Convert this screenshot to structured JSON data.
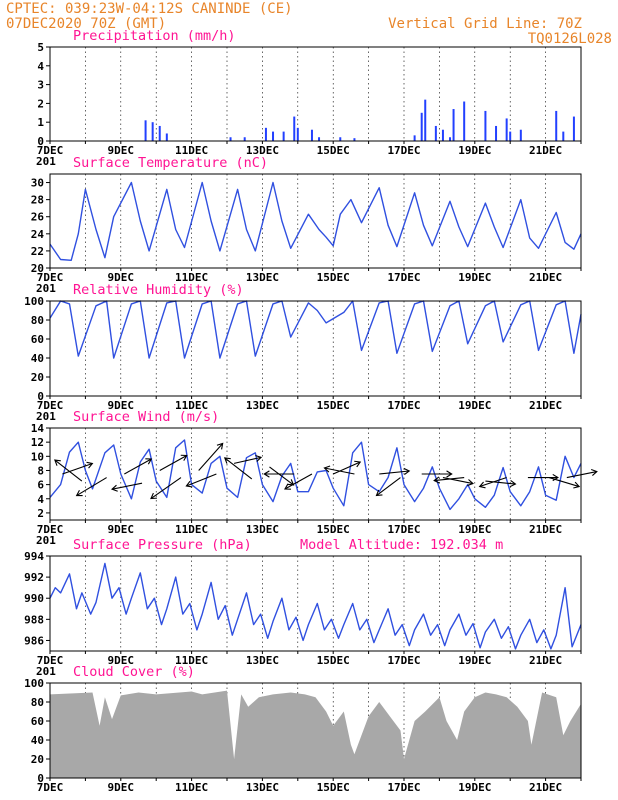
{
  "header": {
    "line1": "CPTEC:   039:23W-04:12S   CANINDE (CE)",
    "line2": "07DEC2020 70Z (GMT)",
    "right1": "Vertical Grid Line: 70Z",
    "right2": "TQ0126L028"
  },
  "x_ticks": [
    "7DEC",
    "9DEC",
    "11DEC",
    "13DEC",
    "15DEC",
    "17DEC",
    "19DEC",
    "21DEC"
  ],
  "x_cut_label": "201",
  "panels": [
    {
      "id": "precip",
      "title": "Precipitation (mm/h)",
      "yticks": [
        "5",
        "4",
        "3",
        "2",
        "1",
        "0"
      ]
    },
    {
      "id": "temp",
      "title": "Surface Temperature (nC)",
      "yticks": [
        "30",
        "28",
        "26",
        "24",
        "22",
        "20"
      ]
    },
    {
      "id": "rh",
      "title": "Relative Humidity (%)",
      "yticks": [
        "100",
        "80",
        "60",
        "40",
        "20",
        "0"
      ]
    },
    {
      "id": "wind",
      "title": "Surface Wind (m/s)",
      "yticks": [
        "14",
        "12",
        "10",
        "8",
        "6",
        "4",
        "2"
      ]
    },
    {
      "id": "press",
      "title": "Surface Pressure (hPa)",
      "extra": "Model Altitude: 192.034 m",
      "yticks": [
        "994",
        "992",
        "990",
        "988",
        "986"
      ]
    },
    {
      "id": "cloud",
      "title": "Cloud Cover (%)",
      "yticks": [
        "100",
        "80",
        "60",
        "40",
        "20",
        "0"
      ]
    }
  ],
  "chart_data": [
    {
      "type": "bar",
      "title": "Precipitation (mm/h)",
      "ylim": [
        0,
        5
      ],
      "x": [
        2.7,
        2.9,
        3.1,
        3.3,
        5.1,
        5.5,
        6.1,
        6.3,
        6.6,
        6.9,
        7.0,
        7.4,
        7.6,
        8.2,
        8.6,
        10.3,
        10.5,
        10.6,
        10.9,
        11.1,
        11.3,
        11.4,
        11.7,
        12.3,
        12.6,
        12.9,
        13.0,
        13.3,
        14.3,
        14.5,
        14.8
      ],
      "values": [
        1.1,
        1.0,
        0.8,
        0.4,
        0.2,
        0.2,
        0.7,
        0.5,
        0.5,
        1.3,
        0.7,
        0.6,
        0.2,
        0.2,
        0.15,
        0.3,
        1.5,
        2.2,
        0.8,
        0.6,
        0.2,
        1.7,
        2.1,
        1.6,
        0.8,
        1.2,
        0.5,
        0.6,
        1.6,
        0.5,
        1.3
      ],
      "xlim": [
        0,
        15
      ],
      "xticks": [
        "7DEC",
        "9DEC",
        "11DEC",
        "13DEC",
        "15DEC",
        "17DEC",
        "19DEC",
        "21DEC"
      ]
    },
    {
      "type": "line",
      "title": "Surface Temperature (nC)",
      "ylim": [
        20,
        31
      ],
      "series": [
        {
          "x": [
            0,
            0.3,
            0.6,
            0.8,
            1.0,
            1.3,
            1.55,
            1.8,
            2.3,
            2.55,
            2.8,
            3.3,
            3.55,
            3.8,
            4.3,
            4.55,
            4.8,
            5.3,
            5.55,
            5.8,
            6.3,
            6.55,
            6.8,
            7.3,
            7.6,
            7.8,
            8.0,
            8.2,
            8.5,
            8.8,
            9.3,
            9.55,
            9.8,
            10.3,
            10.55,
            10.8,
            11.3,
            11.55,
            11.8,
            12.3,
            12.55,
            12.8,
            13.3,
            13.55,
            13.8,
            14.3,
            14.55,
            14.8,
            15.0
          ],
          "values": [
            22.8,
            21.0,
            20.9,
            24.0,
            29.2,
            24.5,
            21.2,
            26.0,
            30.0,
            25.5,
            22.0,
            29.2,
            24.5,
            22.4,
            30.0,
            25.5,
            22.0,
            29.2,
            24.5,
            22.0,
            30.0,
            25.5,
            22.3,
            26.3,
            24.5,
            23.6,
            22.6,
            26.3,
            28.0,
            25.3,
            29.4,
            25.0,
            22.5,
            28.8,
            25.0,
            22.6,
            27.8,
            24.8,
            22.5,
            27.6,
            24.8,
            22.4,
            28.0,
            23.5,
            22.3,
            26.5,
            23.0,
            22.2,
            24.0
          ]
        }
      ],
      "xticks": [
        "7DEC",
        "9DEC",
        "11DEC",
        "13DEC",
        "15DEC",
        "17DEC",
        "19DEC",
        "21DEC"
      ]
    },
    {
      "type": "line",
      "title": "Relative Humidity (%)",
      "ylim": [
        0,
        100
      ],
      "series": [
        {
          "x": [
            0,
            0.3,
            0.55,
            0.8,
            1.3,
            1.6,
            1.8,
            2.3,
            2.55,
            2.8,
            3.3,
            3.55,
            3.8,
            4.3,
            4.55,
            4.8,
            5.3,
            5.55,
            5.8,
            6.3,
            6.55,
            6.8,
            7.3,
            7.55,
            7.8,
            8.3,
            8.55,
            8.8,
            9.3,
            9.55,
            9.8,
            10.3,
            10.55,
            10.8,
            11.3,
            11.55,
            11.8,
            12.3,
            12.55,
            12.8,
            13.3,
            13.55,
            13.8,
            14.3,
            14.55,
            14.8,
            15.0
          ],
          "values": [
            82,
            100,
            97,
            42,
            95,
            100,
            40,
            97,
            100,
            40,
            98,
            100,
            40,
            97,
            100,
            40,
            97,
            100,
            42,
            97,
            100,
            62,
            98,
            90,
            77,
            88,
            100,
            48,
            98,
            100,
            45,
            97,
            100,
            47,
            95,
            100,
            55,
            95,
            100,
            57,
            96,
            100,
            48,
            96,
            100,
            45,
            86
          ]
        }
      ],
      "xticks": [
        "7DEC",
        "9DEC",
        "11DEC",
        "13DEC",
        "15DEC",
        "17DEC",
        "19DEC",
        "21DEC"
      ]
    },
    {
      "type": "line",
      "title": "Surface Wind (m/s)",
      "ylim": [
        1,
        14
      ],
      "series": [
        {
          "x": [
            0,
            0.3,
            0.55,
            0.8,
            1.0,
            1.2,
            1.55,
            1.8,
            2.0,
            2.3,
            2.55,
            2.8,
            3.0,
            3.3,
            3.55,
            3.8,
            4.0,
            4.3,
            4.55,
            4.8,
            5.0,
            5.3,
            5.55,
            5.8,
            6.0,
            6.3,
            6.55,
            6.8,
            7.0,
            7.3,
            7.55,
            7.8,
            8.0,
            8.3,
            8.55,
            8.8,
            9.0,
            9.3,
            9.55,
            9.8,
            10.0,
            10.3,
            10.55,
            10.8,
            11.0,
            11.3,
            11.55,
            11.8,
            12.0,
            12.3,
            12.55,
            12.8,
            13.0,
            13.3,
            13.55,
            13.8,
            14.0,
            14.3,
            14.55,
            14.8,
            15.0
          ],
          "values": [
            4.2,
            6.0,
            10.6,
            12.0,
            8.0,
            5.4,
            10.5,
            11.6,
            7.5,
            4.0,
            9.2,
            11.0,
            6.5,
            4.2,
            11.2,
            12.3,
            6.0,
            4.8,
            9.0,
            10.0,
            5.5,
            4.2,
            9.8,
            10.5,
            6.0,
            3.6,
            7.2,
            9.0,
            5.0,
            5.0,
            7.8,
            8.0,
            5.5,
            3.0,
            10.5,
            12.0,
            6.0,
            5.0,
            7.0,
            11.2,
            6.0,
            3.6,
            5.5,
            8.5,
            5.5,
            2.5,
            4.0,
            6.0,
            4.0,
            2.8,
            4.5,
            8.4,
            5.0,
            3.0,
            5.0,
            8.5,
            4.5,
            3.8,
            10.0,
            7.0,
            9.0
          ]
        }
      ],
      "xticks": [
        "7DEC",
        "9DEC",
        "11DEC",
        "13DEC",
        "15DEC",
        "17DEC",
        "19DEC",
        "21DEC"
      ]
    },
    {
      "type": "line",
      "title": "Surface Pressure (hPa)",
      "ylim": [
        985,
        994
      ],
      "series": [
        {
          "x": [
            0,
            0.15,
            0.3,
            0.55,
            0.75,
            0.9,
            1.15,
            1.3,
            1.55,
            1.75,
            1.95,
            2.15,
            2.3,
            2.55,
            2.75,
            2.95,
            3.15,
            3.3,
            3.55,
            3.75,
            3.95,
            4.15,
            4.3,
            4.55,
            4.75,
            4.95,
            5.15,
            5.3,
            5.55,
            5.75,
            5.95,
            6.15,
            6.3,
            6.55,
            6.75,
            6.95,
            7.15,
            7.3,
            7.55,
            7.75,
            7.95,
            8.15,
            8.3,
            8.55,
            8.75,
            8.95,
            9.15,
            9.3,
            9.55,
            9.75,
            9.95,
            10.15,
            10.3,
            10.55,
            10.75,
            10.95,
            11.15,
            11.3,
            11.55,
            11.75,
            11.95,
            12.15,
            12.3,
            12.55,
            12.75,
            12.95,
            13.15,
            13.3,
            13.55,
            13.75,
            13.95,
            14.15,
            14.3,
            14.55,
            14.75,
            15.0
          ],
          "values": [
            990.0,
            991.0,
            990.5,
            992.3,
            989.0,
            990.5,
            988.5,
            989.6,
            993.3,
            990.0,
            991.0,
            988.5,
            990.0,
            992.4,
            989.0,
            990.0,
            987.5,
            989.0,
            992.0,
            988.5,
            989.5,
            987.0,
            988.5,
            991.5,
            988.0,
            989.3,
            986.5,
            988.0,
            990.5,
            987.5,
            988.5,
            986.2,
            987.8,
            990.0,
            987.0,
            988.2,
            986.0,
            987.5,
            989.5,
            987.0,
            988.0,
            986.2,
            987.5,
            989.5,
            987.0,
            988.0,
            985.8,
            987.0,
            989.0,
            986.5,
            987.5,
            985.5,
            987.0,
            988.5,
            986.5,
            987.5,
            985.5,
            987.0,
            988.5,
            986.5,
            987.6,
            985.3,
            986.8,
            988.0,
            986.2,
            987.3,
            985.2,
            986.5,
            988.0,
            985.8,
            987.0,
            985.2,
            986.5,
            991.0,
            985.4,
            987.5
          ]
        }
      ],
      "xticks": [
        "7DEC",
        "9DEC",
        "11DEC",
        "13DEC",
        "15DEC",
        "17DEC",
        "19DEC",
        "21DEC"
      ]
    },
    {
      "type": "area",
      "title": "Cloud Cover (%)",
      "ylim": [
        0,
        100
      ],
      "series": [
        {
          "x": [
            0,
            1.2,
            1.4,
            1.55,
            1.75,
            2.0,
            2.5,
            3.0,
            4.0,
            4.3,
            5.0,
            5.2,
            5.4,
            5.6,
            5.9,
            6.3,
            6.8,
            7.2,
            7.5,
            7.8,
            8.0,
            8.3,
            8.5,
            8.6,
            8.8,
            9.0,
            9.3,
            9.6,
            9.9,
            10.0,
            10.3,
            10.6,
            11.0,
            11.2,
            11.5,
            11.7,
            12.0,
            12.3,
            12.6,
            12.9,
            13.2,
            13.5,
            13.6,
            13.9,
            14.3,
            14.5,
            14.7,
            15.0
          ],
          "values": [
            88,
            90,
            55,
            85,
            62,
            87,
            90,
            88,
            91,
            88,
            92,
            20,
            88,
            75,
            85,
            88,
            90,
            88,
            85,
            70,
            55,
            70,
            35,
            25,
            45,
            65,
            80,
            65,
            50,
            20,
            60,
            70,
            85,
            60,
            40,
            70,
            85,
            90,
            88,
            85,
            75,
            60,
            35,
            90,
            85,
            45,
            60,
            78
          ]
        }
      ],
      "xticks": [
        "7DEC",
        "9DEC",
        "11DEC",
        "13DEC",
        "15DEC",
        "17DEC",
        "19DEC",
        "21DEC"
      ]
    }
  ],
  "wind_vectors": [
    {
      "day": 0.35,
      "y": 7.5,
      "dx": 1.0,
      "dy": 0.35
    },
    {
      "day": 0.9,
      "y": 6.5,
      "dx": -0.9,
      "dy": 0.7
    },
    {
      "day": 1.6,
      "y": 7.0,
      "dx": -1.0,
      "dy": -0.6
    },
    {
      "day": 2.1,
      "y": 7.5,
      "dx": 0.9,
      "dy": 0.5
    },
    {
      "day": 2.6,
      "y": 6.2,
      "dx": -1.0,
      "dy": -0.2
    },
    {
      "day": 3.1,
      "y": 8.0,
      "dx": 0.9,
      "dy": 0.5
    },
    {
      "day": 3.7,
      "y": 7.0,
      "dx": -1.0,
      "dy": -0.7
    },
    {
      "day": 4.2,
      "y": 8.0,
      "dx": 0.8,
      "dy": 0.9
    },
    {
      "day": 4.7,
      "y": 7.5,
      "dx": -1.0,
      "dy": -0.4
    },
    {
      "day": 5.2,
      "y": 9.0,
      "dx": 0.9,
      "dy": 0.2
    },
    {
      "day": 5.7,
      "y": 6.8,
      "dx": -0.9,
      "dy": 0.7
    },
    {
      "day": 6.2,
      "y": 8.5,
      "dx": 0.8,
      "dy": -0.6
    },
    {
      "day": 6.9,
      "y": 7.5,
      "dx": -1.0,
      "dy": 0.0
    },
    {
      "day": 7.4,
      "y": 7.5,
      "dx": -0.9,
      "dy": -0.5
    },
    {
      "day": 8.0,
      "y": 7.5,
      "dx": 0.9,
      "dy": 0.4
    },
    {
      "day": 8.6,
      "y": 7.5,
      "dx": -1.0,
      "dy": 0.2
    },
    {
      "day": 9.3,
      "y": 7.5,
      "dx": 1.0,
      "dy": 0.1
    },
    {
      "day": 9.9,
      "y": 7.0,
      "dx": -0.8,
      "dy": -0.6
    },
    {
      "day": 10.5,
      "y": 7.5,
      "dx": 1.0,
      "dy": 0.0
    },
    {
      "day": 11.1,
      "y": 7.0,
      "dx": 1.0,
      "dy": -0.2
    },
    {
      "day": 11.7,
      "y": 7.0,
      "dx": -1.0,
      "dy": -0.1
    },
    {
      "day": 12.3,
      "y": 6.5,
      "dx": 1.0,
      "dy": -0.1
    },
    {
      "day": 12.9,
      "y": 7.0,
      "dx": -0.9,
      "dy": -0.3
    },
    {
      "day": 13.5,
      "y": 7.0,
      "dx": 1.0,
      "dy": 0.0
    },
    {
      "day": 14.1,
      "y": 7.0,
      "dx": 1.0,
      "dy": -0.3
    },
    {
      "day": 14.6,
      "y": 7.0,
      "dx": 1.0,
      "dy": 0.2
    }
  ]
}
